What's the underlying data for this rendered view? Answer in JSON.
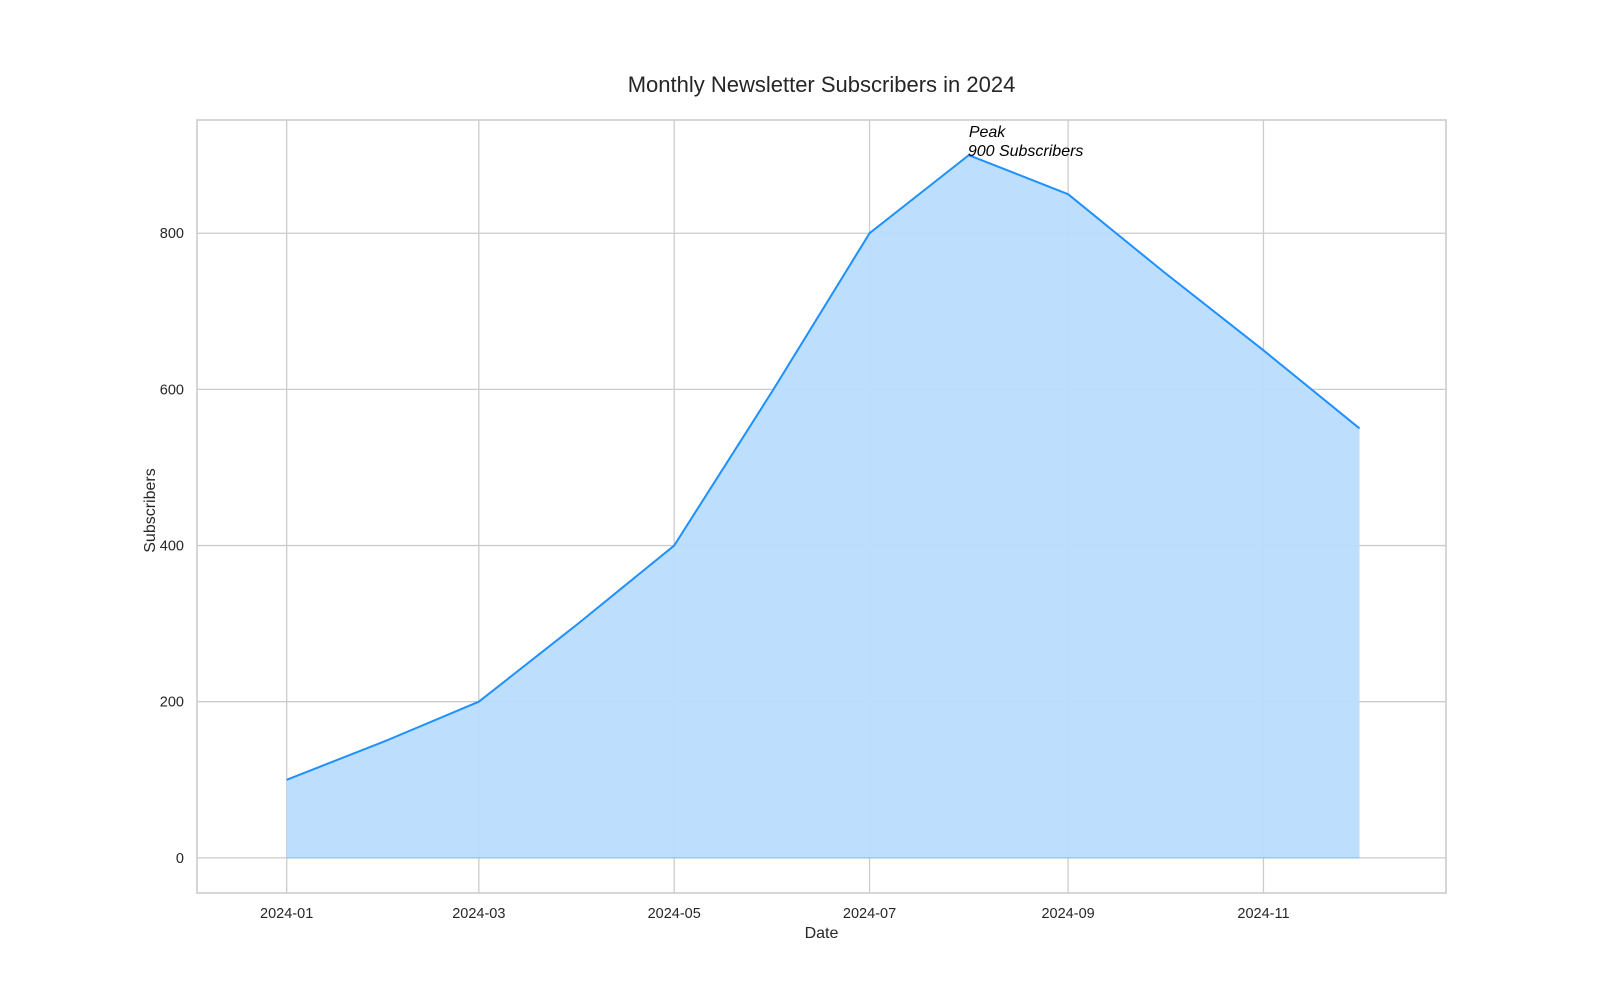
{
  "chart_data": {
    "type": "area",
    "title": "Monthly Newsletter Subscribers in 2024",
    "xlabel": "Date",
    "ylabel": "Subscribers",
    "x": [
      "2024-01",
      "2024-02",
      "2024-03",
      "2024-04",
      "2024-05",
      "2024-06",
      "2024-07",
      "2024-08",
      "2024-09",
      "2024-10",
      "2024-11",
      "2024-12"
    ],
    "values": [
      100,
      150,
      200,
      300,
      400,
      600,
      800,
      900,
      850,
      750,
      650,
      550
    ],
    "x_ticks": [
      "2024-01",
      "2024-03",
      "2024-05",
      "2024-07",
      "2024-09",
      "2024-11"
    ],
    "y_ticks": [
      "0",
      "200",
      "400",
      "600",
      "800"
    ],
    "ylim": [
      -45,
      945
    ],
    "xlim": [
      "2023-12-04",
      "2024-12-28"
    ],
    "grid": true,
    "annotation": {
      "x": "2024-08",
      "y": 900,
      "line1": "Peak",
      "line2": "900 Subscribers"
    },
    "colors": {
      "line": "#1e90ff",
      "fill": "#b9dcfd",
      "grid": "#cccccc",
      "frame": "#cccccc"
    }
  }
}
